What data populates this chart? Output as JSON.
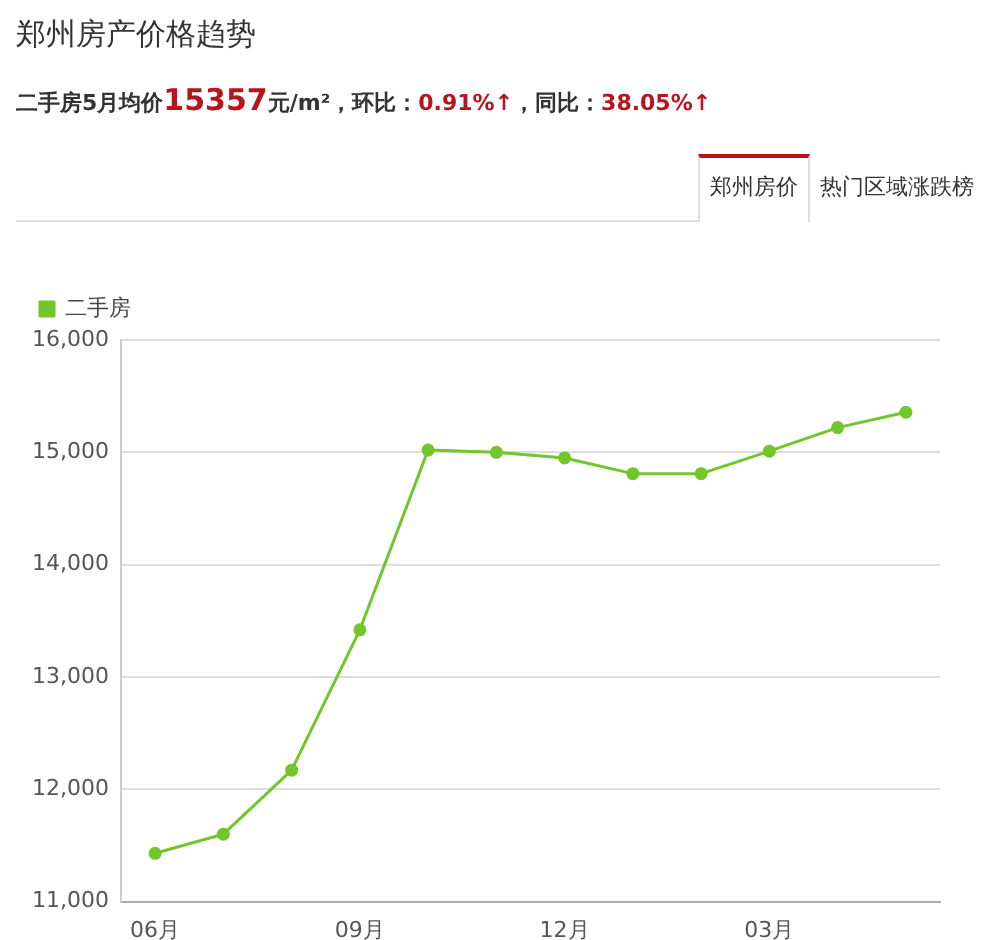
{
  "chart_data": {
    "type": "line",
    "title": "郑州房产价格趋势",
    "subtitle": "二手房5月均价15357元/m²，环比：0.91%↑，同比：38.05%↑",
    "annotations": [
      "郑州房价",
      "热门区域涨跌榜"
    ],
    "categories": [
      "06月",
      null,
      null,
      "09月",
      null,
      null,
      "12月",
      null,
      null,
      "03月",
      null,
      null
    ],
    "series": [
      {
        "name": "二手房",
        "color": "#72c629",
        "values": [
          11430,
          11600,
          12170,
          13420,
          15020,
          15000,
          14950,
          14810,
          14810,
          15010,
          15220,
          15357
        ]
      }
    ],
    "ylim": [
      11000,
      16000
    ],
    "yticks": [
      {
        "value": 11000,
        "label": "11,000"
      },
      {
        "value": 12000,
        "label": "12,000"
      },
      {
        "value": 13000,
        "label": "13,000"
      },
      {
        "value": 14000,
        "label": "14,000"
      },
      {
        "value": 15000,
        "label": "15,000"
      },
      {
        "value": 16000,
        "label": "16,000"
      }
    ],
    "grid": "y",
    "legend": "top left",
    "marker": "circle",
    "line_style": "solid"
  }
}
